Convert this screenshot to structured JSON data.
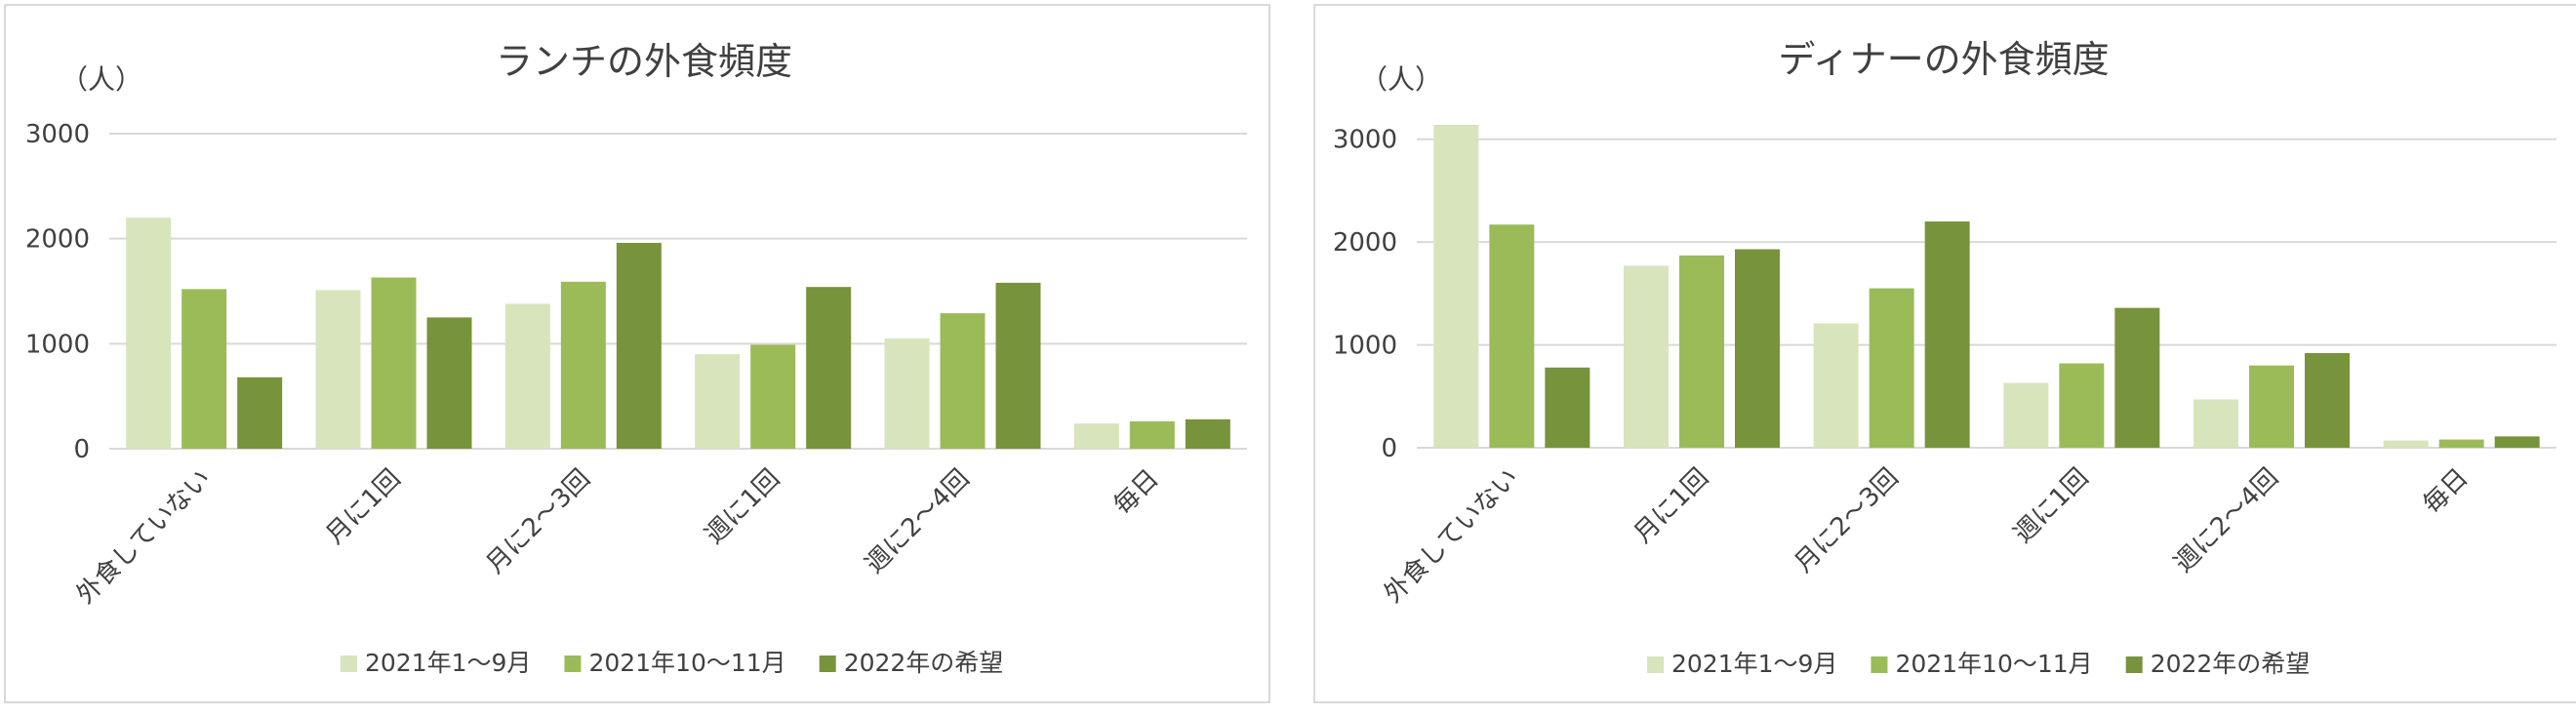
{
  "chart_data": [
    {
      "type": "bar",
      "title": "ランチの外食頻度",
      "ylabel": "（人）",
      "ylim": [
        0,
        3000
      ],
      "yticks": [
        0,
        1000,
        2000,
        3000
      ],
      "grid": true,
      "legend_position": "bottom",
      "categories": [
        "外食していない",
        "月に1回",
        "月に2～3回",
        "週に1回",
        "週に2～4回",
        "毎日"
      ],
      "series": [
        {
          "name": "2021年1～9月",
          "color": "#d8e4bc",
          "values": [
            2200,
            1510,
            1380,
            900,
            1050,
            240
          ]
        },
        {
          "name": "2021年10～11月",
          "color": "#9bbb59",
          "values": [
            1520,
            1630,
            1590,
            990,
            1290,
            260
          ]
        },
        {
          "name": "2022年の希望",
          "color": "#77933c",
          "values": [
            680,
            1250,
            1960,
            1540,
            1580,
            280
          ]
        }
      ]
    },
    {
      "type": "bar",
      "title": "ディナーの外食頻度",
      "ylabel": "（人）",
      "ylim": [
        0,
        3500
      ],
      "yticks": [
        0,
        1000,
        2000,
        3000
      ],
      "grid": true,
      "legend_position": "bottom",
      "categories": [
        "外食していない",
        "月に1回",
        "月に2～3回",
        "週に1回",
        "週に2～4回",
        "毎日"
      ],
      "series": [
        {
          "name": "2021年1～9月",
          "color": "#d8e4bc",
          "values": [
            3140,
            1770,
            1210,
            630,
            470,
            70
          ]
        },
        {
          "name": "2021年10～11月",
          "color": "#9bbb59",
          "values": [
            2170,
            1870,
            1550,
            820,
            800,
            80
          ]
        },
        {
          "name": "2022年の希望",
          "color": "#77933c",
          "values": [
            780,
            1930,
            2200,
            1360,
            920,
            110
          ]
        }
      ]
    }
  ]
}
